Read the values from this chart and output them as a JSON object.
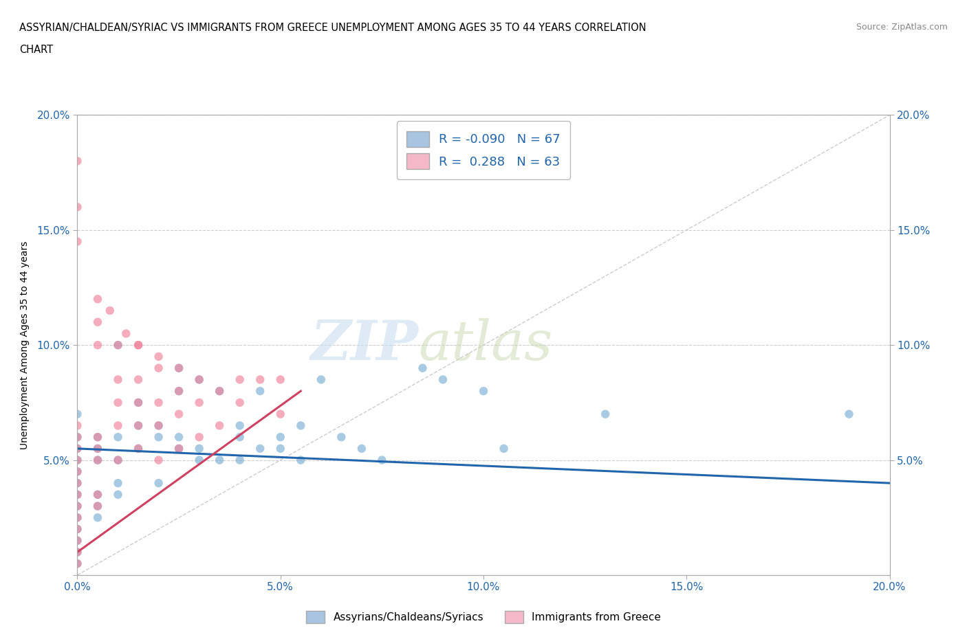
{
  "title_line1": "ASSYRIAN/CHALDEAN/SYRIAC VS IMMIGRANTS FROM GREECE UNEMPLOYMENT AMONG AGES 35 TO 44 YEARS CORRELATION",
  "title_line2": "CHART",
  "source": "Source: ZipAtlas.com",
  "ylabel": "Unemployment Among Ages 35 to 44 years",
  "xlim": [
    0.0,
    0.2
  ],
  "ylim": [
    0.0,
    0.2
  ],
  "xticks": [
    0.0,
    0.05,
    0.1,
    0.15,
    0.2
  ],
  "yticks": [
    0.05,
    0.1,
    0.15,
    0.2
  ],
  "xtick_labels": [
    "0.0%",
    "5.0%",
    "10.0%",
    "15.0%",
    "20.0%"
  ],
  "ytick_labels_left": [
    "5.0%",
    "10.0%",
    "15.0%",
    "20.0%"
  ],
  "ytick_labels_right": [
    "5.0%",
    "10.0%",
    "15.0%",
    "20.0%"
  ],
  "blue_R": -0.09,
  "blue_N": 67,
  "pink_R": 0.288,
  "pink_N": 63,
  "blue_legend_color": "#a8c4e0",
  "pink_legend_color": "#f4b8c8",
  "blue_scatter_color": "#7ab0d4",
  "pink_scatter_color": "#f08098",
  "trend_blue_color": "#2166ac",
  "trend_pink_color": "#d04060",
  "blue_trend_x": [
    0.0,
    0.2
  ],
  "blue_trend_y": [
    0.055,
    0.04
  ],
  "pink_trend_x": [
    0.0,
    0.055
  ],
  "pink_trend_y": [
    0.01,
    0.08
  ],
  "blue_points_x": [
    0.0,
    0.0,
    0.0,
    0.0,
    0.0,
    0.0,
    0.0,
    0.0,
    0.0,
    0.0,
    0.0,
    0.0,
    0.0,
    0.005,
    0.005,
    0.005,
    0.005,
    0.005,
    0.005,
    0.01,
    0.01,
    0.01,
    0.01,
    0.01,
    0.015,
    0.015,
    0.015,
    0.02,
    0.02,
    0.02,
    0.025,
    0.025,
    0.025,
    0.025,
    0.03,
    0.03,
    0.03,
    0.035,
    0.035,
    0.04,
    0.04,
    0.04,
    0.045,
    0.045,
    0.05,
    0.05,
    0.055,
    0.055,
    0.06,
    0.065,
    0.07,
    0.075,
    0.085,
    0.09,
    0.1,
    0.105,
    0.13,
    0.19
  ],
  "blue_points_y": [
    0.04,
    0.045,
    0.05,
    0.055,
    0.06,
    0.035,
    0.03,
    0.025,
    0.02,
    0.015,
    0.01,
    0.005,
    0.07,
    0.05,
    0.055,
    0.06,
    0.035,
    0.03,
    0.025,
    0.05,
    0.06,
    0.035,
    0.04,
    0.1,
    0.055,
    0.065,
    0.075,
    0.06,
    0.065,
    0.04,
    0.055,
    0.06,
    0.08,
    0.09,
    0.05,
    0.055,
    0.085,
    0.05,
    0.08,
    0.06,
    0.065,
    0.05,
    0.055,
    0.08,
    0.06,
    0.055,
    0.065,
    0.05,
    0.085,
    0.06,
    0.055,
    0.05,
    0.09,
    0.085,
    0.08,
    0.055,
    0.07,
    0.07
  ],
  "pink_points_x": [
    0.0,
    0.0,
    0.0,
    0.0,
    0.0,
    0.0,
    0.0,
    0.0,
    0.0,
    0.0,
    0.0,
    0.0,
    0.0,
    0.005,
    0.005,
    0.005,
    0.005,
    0.005,
    0.01,
    0.01,
    0.01,
    0.015,
    0.015,
    0.015,
    0.015,
    0.02,
    0.02,
    0.02,
    0.025,
    0.025,
    0.025,
    0.03,
    0.03,
    0.035,
    0.035,
    0.04,
    0.04,
    0.045,
    0.05,
    0.05,
    0.005,
    0.01,
    0.015,
    0.005,
    0.01,
    0.0,
    0.0,
    0.0,
    0.005,
    0.008,
    0.012,
    0.015,
    0.02,
    0.02,
    0.025,
    0.03
  ],
  "pink_points_y": [
    0.04,
    0.045,
    0.05,
    0.055,
    0.06,
    0.065,
    0.035,
    0.03,
    0.025,
    0.02,
    0.015,
    0.01,
    0.005,
    0.05,
    0.06,
    0.035,
    0.03,
    0.055,
    0.065,
    0.05,
    0.075,
    0.055,
    0.065,
    0.075,
    0.085,
    0.065,
    0.075,
    0.05,
    0.07,
    0.08,
    0.055,
    0.075,
    0.06,
    0.08,
    0.065,
    0.075,
    0.085,
    0.085,
    0.085,
    0.07,
    0.1,
    0.1,
    0.1,
    0.11,
    0.085,
    0.145,
    0.18,
    0.16,
    0.12,
    0.115,
    0.105,
    0.1,
    0.095,
    0.09,
    0.09,
    0.085
  ]
}
